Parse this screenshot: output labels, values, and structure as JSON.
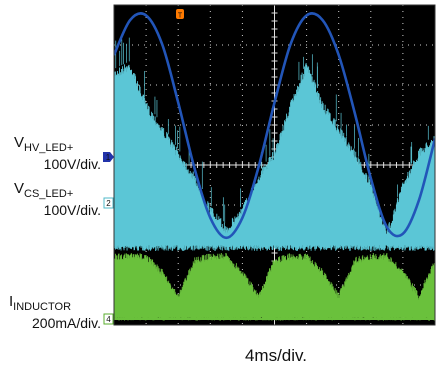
{
  "chart_data": {
    "type": "line",
    "title": "",
    "x_scale": "4ms/div.",
    "x_divisions": 10,
    "y_divisions": 8,
    "grid": true,
    "background": "#000000",
    "series": [
      {
        "name_main": "V",
        "name_sub": "HV_LED+",
        "scale": "100V/div.",
        "channel": "1",
        "color": "#2255b8",
        "marker_color": "#2233aa",
        "shape": "full-wave rectified sine (envelope), valleys ~ -1.5 div at ~100Hz",
        "x": [
          0,
          0.5,
          1,
          1.5,
          2,
          2.5,
          3,
          3.5,
          4,
          4.5,
          5,
          5.5,
          6,
          6.5,
          7,
          7.5,
          8,
          8.5,
          9,
          9.5,
          10
        ],
        "y": [
          2.75,
          3.62,
          3.74,
          3.02,
          1.56,
          -0.06,
          -1.32,
          -1.82,
          -1.32,
          -0.06,
          1.56,
          3.02,
          3.74,
          3.62,
          2.75,
          1.3,
          -0.33,
          -1.55,
          -1.72,
          -0.88,
          0.66
        ]
      },
      {
        "name_main": "V",
        "name_sub": "CS_LED+",
        "scale": "100V/div.",
        "channel": "2",
        "color": "#5bc6d6",
        "marker_color": "#4fb8c8",
        "shape": "dense switching waveform, peak envelope follows rectified sine",
        "x": [
          0,
          0.5,
          1,
          1.5,
          2,
          2.5,
          3,
          3.5,
          4,
          4.5,
          5,
          5.5,
          6,
          6.5,
          7,
          7.5,
          8,
          8.5,
          9,
          9.5,
          10
        ],
        "y_top": [
          2.4,
          2.6,
          1.6,
          1.0,
          0.4,
          -0.2,
          -1.0,
          -1.5,
          -1.0,
          -0.2,
          0.4,
          1.6,
          2.6,
          1.6,
          1.0,
          0.4,
          -0.4,
          -1.6,
          -0.4,
          0.4,
          0.8
        ],
        "y_bottom": -2.0
      },
      {
        "name_main": "I",
        "name_sub": "INDUCTOR",
        "scale": "200mA/div.",
        "channel": "4",
        "color": "#6ac13c",
        "marker_color": "#5aae2e",
        "shape": "pulsed inductor current band, collapses during line valleys",
        "x": [
          0,
          0.5,
          1,
          1.5,
          2,
          2.5,
          3,
          3.5,
          4,
          4.5,
          5,
          5.5,
          6,
          6.5,
          7,
          7.5,
          8,
          8.5,
          9,
          9.5,
          10
        ],
        "y_top": [
          -2.2,
          -2.2,
          -2.2,
          -2.6,
          -3.2,
          -2.3,
          -2.2,
          -2.2,
          -2.6,
          -3.2,
          -2.3,
          -2.2,
          -2.2,
          -2.6,
          -3.2,
          -2.3,
          -2.2,
          -2.2,
          -2.6,
          -3.2,
          -2.3
        ],
        "y_bottom": -3.85
      }
    ],
    "trigger_marker": {
      "label": "T",
      "color": "#ff7a00"
    }
  }
}
